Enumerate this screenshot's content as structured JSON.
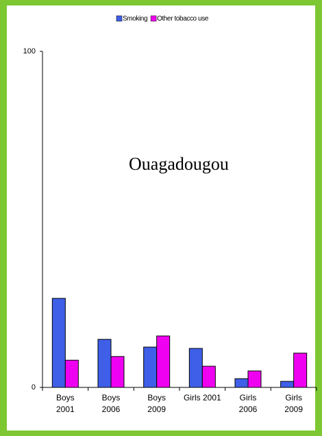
{
  "chart_data": {
    "type": "bar",
    "annotation": "Ouagadougou",
    "categories": [
      "Boys\n2001",
      "Boys\n2006",
      "Boys\n2009",
      "Girls 2001",
      "Girls\n2006",
      "Girls\n2009"
    ],
    "series": [
      {
        "name": "Smoking",
        "color": "#3f5fe8",
        "values": [
          26.5,
          14.3,
          12,
          11.6,
          2.6,
          1.8
        ]
      },
      {
        "name": "Other tobacco use",
        "color": "#f000f0",
        "values": [
          8.1,
          9.2,
          15.3,
          6.3,
          4.9,
          10.2
        ]
      }
    ],
    "ylim": [
      0,
      100
    ],
    "yticks": [
      0,
      100
    ],
    "legend": "top"
  }
}
